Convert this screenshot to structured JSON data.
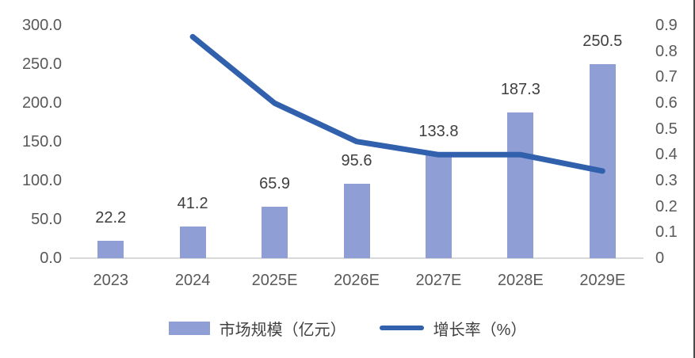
{
  "chart_data": {
    "type": "combo-bar-line",
    "title": "",
    "categories": [
      "2023",
      "2024",
      "2025E",
      "2026E",
      "2027E",
      "2028E",
      "2029E"
    ],
    "series": [
      {
        "name": "市场规模（亿元）",
        "type": "bar",
        "axis": "left",
        "color": "#8f9fd5",
        "values": [
          22.2,
          41.2,
          65.9,
          95.6,
          133.8,
          187.3,
          250.5
        ],
        "data_labels": [
          "22.2",
          "41.2",
          "65.9",
          "95.6",
          "133.8",
          "187.3",
          "250.5"
        ]
      },
      {
        "name": "增长率（%）",
        "type": "line",
        "axis": "right",
        "color": "#3160ad",
        "values": [
          null,
          0.856,
          0.599,
          0.451,
          0.4,
          0.4,
          0.337
        ]
      }
    ],
    "left_axis": {
      "min": 0,
      "max": 300,
      "step": 50,
      "tick_labels": [
        "0.0",
        "50.0",
        "100.0",
        "150.0",
        "200.0",
        "250.0",
        "300.0"
      ]
    },
    "right_axis": {
      "min": 0,
      "max": 0.9,
      "step": 0.1,
      "tick_labels": [
        "0",
        "0.1",
        "0.2",
        "0.3",
        "0.4",
        "0.5",
        "0.6",
        "0.7",
        "0.8",
        "0.9"
      ]
    },
    "grid": false,
    "legend": {
      "position": "bottom",
      "items": [
        {
          "label": "市场规模（亿元）",
          "swatch": "bar"
        },
        {
          "label": "增长率（%）",
          "swatch": "line"
        }
      ]
    }
  }
}
